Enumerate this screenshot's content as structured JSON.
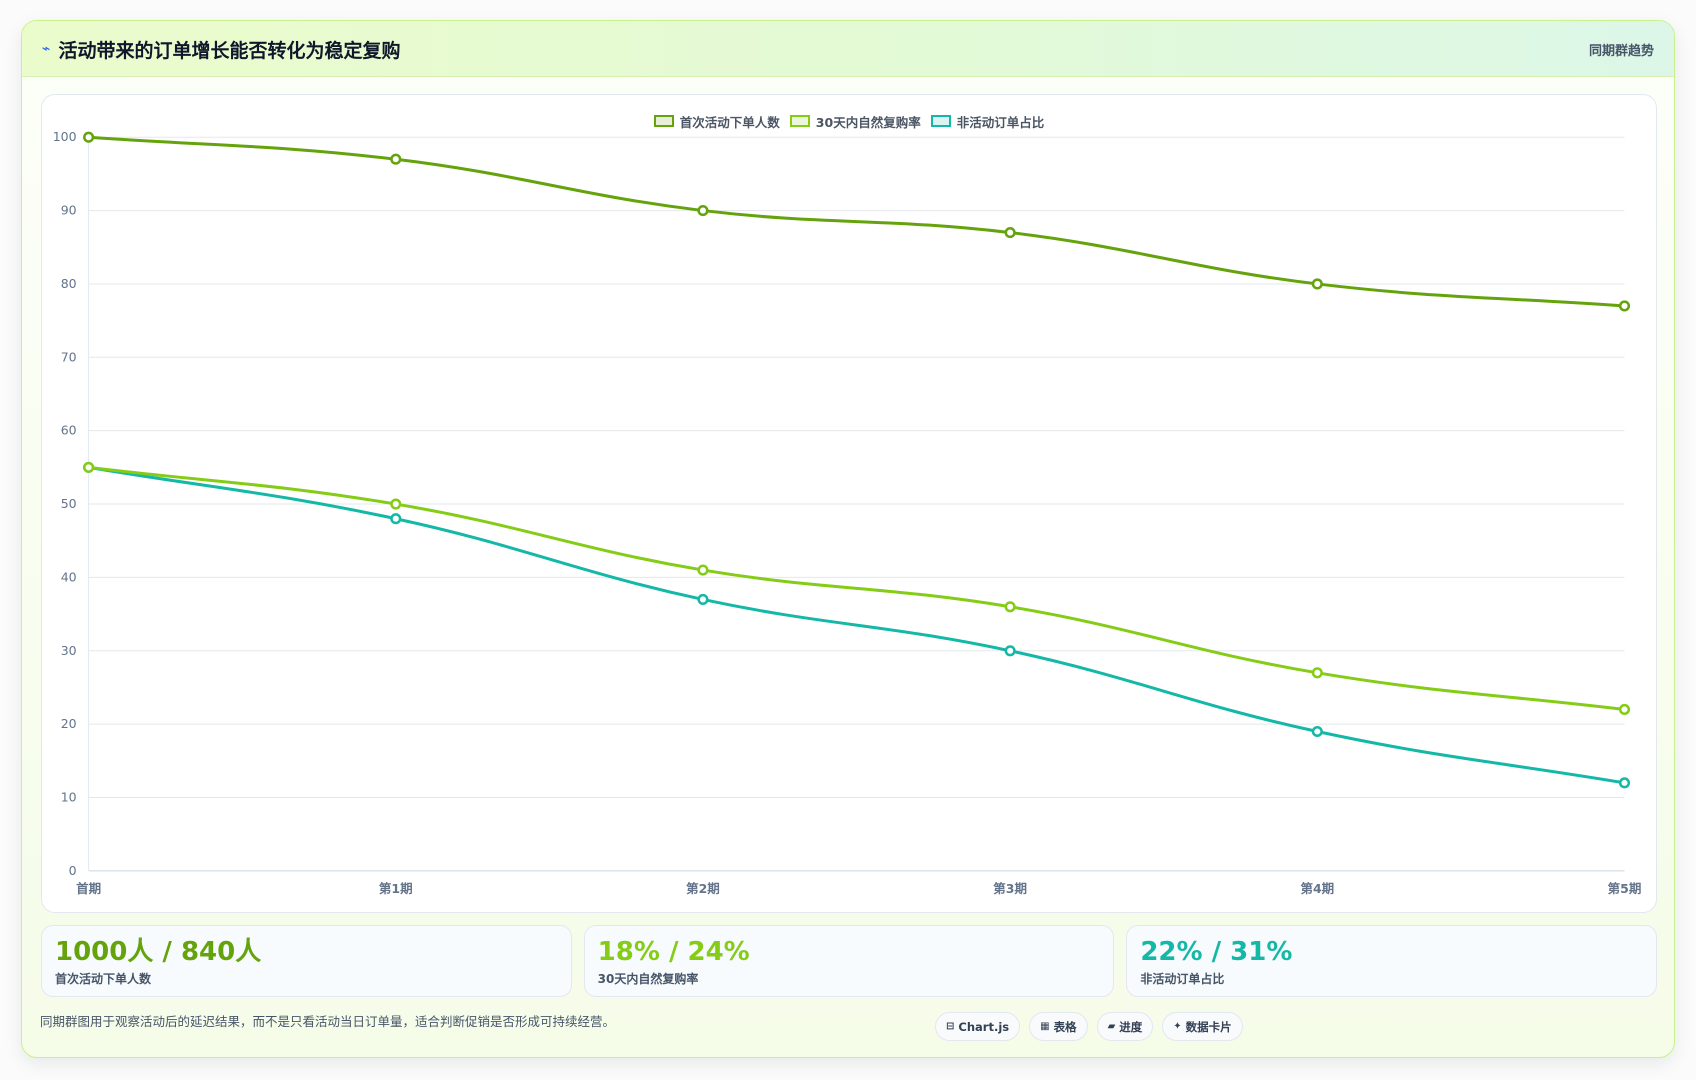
{
  "header": {
    "icon": "pulse-icon",
    "icon_glyph": "⌁",
    "title": "活动带来的订单增长能否转化为稳定复购",
    "tag": "同期群趋势"
  },
  "chart_data": {
    "type": "line",
    "x": [
      "首期",
      "第1期",
      "第2期",
      "第3期",
      "第4期",
      "第5期"
    ],
    "ylim": [
      0,
      100
    ],
    "yticks": [
      0,
      10,
      20,
      30,
      40,
      50,
      60,
      70,
      80,
      90,
      100
    ],
    "grid": true,
    "legend_position": "top",
    "series": [
      {
        "name": "首次活动下单人数",
        "values": [
          100,
          97,
          90,
          87,
          80,
          77
        ],
        "color": "#65a30d"
      },
      {
        "name": "30天内自然复购率",
        "values": [
          55,
          50,
          41,
          36,
          27,
          22
        ],
        "color": "#84cc16"
      },
      {
        "name": "非活动订单占比",
        "values": [
          55,
          48,
          37,
          30,
          19,
          12
        ],
        "color": "#14b8a6"
      }
    ]
  },
  "stats": [
    {
      "value": "1000人 / 840人",
      "label": "首次活动下单人数",
      "color": "#65a30d"
    },
    {
      "value": "18% / 24%",
      "label": "30天内自然复购率",
      "color": "#84cc16"
    },
    {
      "value": "22% / 31%",
      "label": "非活动订单占比",
      "color": "#14b8a6"
    }
  ],
  "footer": {
    "note": "同期群图用于观察活动后的延迟结果，而不是只看活动当日订单量，适合判断促销是否形成可持续经营。",
    "buttons": [
      {
        "icon": "chart-icon",
        "glyph": "⊟",
        "label": "Chart.js"
      },
      {
        "icon": "table-icon",
        "glyph": "▦",
        "label": "表格"
      },
      {
        "icon": "progress-icon",
        "glyph": "▰",
        "label": "进度"
      },
      {
        "icon": "card-icon",
        "glyph": "✦",
        "label": "数据卡片"
      }
    ]
  }
}
